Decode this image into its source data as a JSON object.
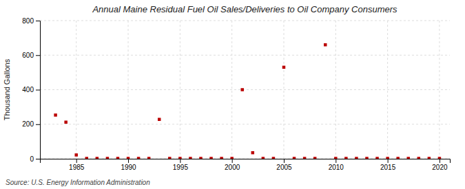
{
  "chart_data": {
    "type": "scatter",
    "title": "Annual Maine Residual Fuel Oil Sales/Deliveries to Oil Company Consumers",
    "ylabel": "Thousand Gallons",
    "source": "Source: U.S. Energy Information Administration",
    "x": [
      1983,
      1984,
      1985,
      1986,
      1987,
      1988,
      1989,
      1990,
      1991,
      1992,
      1993,
      1994,
      1995,
      1996,
      1997,
      1998,
      1999,
      2000,
      2001,
      2002,
      2003,
      2004,
      2005,
      2006,
      2007,
      2008,
      2009,
      2010,
      2011,
      2012,
      2013,
      2014,
      2015,
      2016,
      2017,
      2018,
      2019,
      2020
    ],
    "values": [
      253,
      212,
      22,
      2,
      2,
      2,
      2,
      2,
      2,
      2,
      228,
      2,
      2,
      2,
      2,
      2,
      2,
      2,
      400,
      35,
      2,
      2,
      530,
      2,
      2,
      2,
      660,
      2,
      2,
      2,
      2,
      2,
      2,
      2,
      2,
      2,
      2,
      2
    ],
    "color": "#bb0000",
    "marker": "square",
    "xlim": [
      1981.5,
      2021
    ],
    "ylim": [
      0,
      800
    ],
    "xticks": [
      1985,
      1990,
      1995,
      2000,
      2005,
      2010,
      2015,
      2020
    ],
    "yticks": [
      0,
      200,
      400,
      600,
      800
    ],
    "grid": true
  }
}
